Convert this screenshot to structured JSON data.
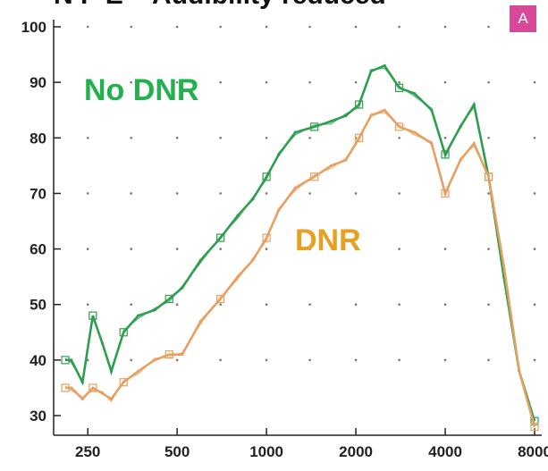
{
  "chart_data": {
    "type": "line",
    "title": "N P E – Audibility reduced",
    "xscale": "log",
    "xlim": [
      200,
      8000
    ],
    "ylim": [
      30,
      100
    ],
    "xticks": [
      250,
      500,
      1000,
      2000,
      4000,
      8000
    ],
    "xtick_labels": [
      "250",
      "500",
      "1000",
      "2000",
      "4000",
      "8000"
    ],
    "yticks": [
      30,
      40,
      50,
      60,
      70,
      80,
      90,
      100
    ],
    "grid": "dotted",
    "panel_badge": "A",
    "series": [
      {
        "name": "No DNR",
        "color": "#2e9e4f",
        "label_color": "#22b14c",
        "x": [
          210,
          220,
          240,
          260,
          280,
          300,
          330,
          370,
          420,
          470,
          520,
          600,
          700,
          800,
          900,
          1000,
          1100,
          1250,
          1450,
          1650,
          1850,
          2050,
          2250,
          2500,
          2800,
          3150,
          3600,
          4000,
          4500,
          5000,
          5600,
          6300,
          7100,
          8000
        ],
        "y": [
          40,
          40,
          36,
          48,
          43,
          38,
          45,
          48,
          49,
          51,
          53,
          58,
          62,
          66,
          69,
          73,
          77,
          81,
          82,
          83,
          84,
          86,
          92,
          93,
          89,
          88,
          85,
          77,
          82,
          86,
          73,
          55,
          38,
          29
        ]
      },
      {
        "name": "DNR",
        "color": "#e8a060",
        "label_color": "#e8a020",
        "x": [
          210,
          220,
          240,
          260,
          280,
          300,
          330,
          370,
          420,
          470,
          520,
          600,
          700,
          800,
          900,
          1000,
          1100,
          1250,
          1450,
          1650,
          1850,
          2050,
          2250,
          2500,
          2800,
          3150,
          3600,
          4000,
          4500,
          5000,
          5600,
          6300,
          7100,
          8000
        ],
        "y": [
          35,
          35,
          33,
          35,
          34,
          33,
          36,
          38,
          40,
          41,
          41,
          47,
          51,
          55,
          58,
          62,
          67,
          71,
          73,
          75,
          76,
          80,
          84,
          85,
          82,
          81,
          79,
          70,
          76,
          79,
          73,
          57,
          38,
          28
        ]
      }
    ]
  }
}
